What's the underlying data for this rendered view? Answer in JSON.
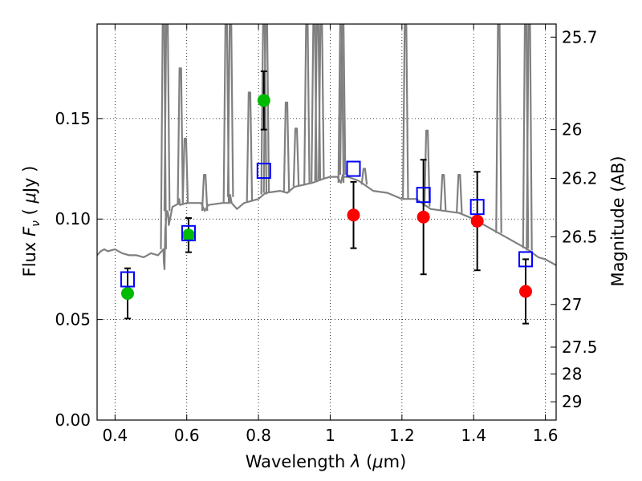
{
  "chart_data": {
    "type": "scatter",
    "xlabel": "Wavelength  λ (μm)",
    "ylabel": "Flux  Fν  ( μJy )",
    "y2label": "Magnitude (AB)",
    "xlim": [
      0.35,
      1.63
    ],
    "ylim": [
      0.0,
      0.197
    ],
    "grid": true,
    "x_ticks": [
      0.4,
      0.6,
      0.8,
      1.0,
      1.2,
      1.4,
      1.6
    ],
    "x_tick_labels": [
      "0.4",
      "0.6",
      "0.8",
      "1",
      "1.2",
      "1.4",
      "1.6"
    ],
    "y_ticks": [
      0.0,
      0.05,
      0.1,
      0.15
    ],
    "y_tick_labels": [
      "0.00",
      "0.05",
      "0.10",
      "0.15"
    ],
    "y2_ticks": [
      {
        "label": "25.7",
        "flux": 0.1905
      },
      {
        "label": "26",
        "flux": 0.1445
      },
      {
        "label": "26.2",
        "flux": 0.1202
      },
      {
        "label": "26.5",
        "flux": 0.0912
      },
      {
        "label": "27",
        "flux": 0.0575
      },
      {
        "label": "27.5",
        "flux": 0.0363
      },
      {
        "label": "28",
        "flux": 0.0229
      },
      {
        "label": "29",
        "flux": 0.0091
      }
    ],
    "colors": {
      "model": "#808080",
      "green": "#00bb00",
      "red": "#ff0000",
      "model_box": "#0000ff",
      "errorbar": "#000000"
    },
    "series": [
      {
        "kind": "line",
        "x": [
          0.35,
          0.36,
          0.37,
          0.38,
          0.4,
          0.42,
          0.44,
          0.46,
          0.48,
          0.5,
          0.52,
          0.535,
          0.536,
          0.538,
          0.54,
          0.545,
          0.548,
          0.55,
          0.56,
          0.58,
          0.579,
          0.581,
          0.6,
          0.63,
          0.64,
          0.65,
          0.66,
          0.7,
          0.72,
          0.721,
          0.725,
          0.74,
          0.76,
          0.8,
          0.82,
          0.86,
          0.88,
          0.9,
          0.95,
          0.98,
          1.0,
          1.02,
          1.03,
          1.035,
          1.04,
          1.05,
          1.08,
          1.12,
          1.16,
          1.2,
          1.24,
          1.28,
          1.32,
          1.36,
          1.4,
          1.44,
          1.48,
          1.5,
          1.52,
          1.55,
          1.58,
          1.6,
          1.63
        ],
        "y": [
          0.082,
          0.084,
          0.085,
          0.084,
          0.085,
          0.083,
          0.082,
          0.082,
          0.081,
          0.083,
          0.082,
          0.085,
          0.079,
          0.075,
          0.095,
          0.104,
          0.103,
          0.097,
          0.106,
          0.108,
          0.11,
          0.107,
          0.108,
          0.108,
          0.108,
          0.104,
          0.107,
          0.108,
          0.108,
          0.112,
          0.108,
          0.105,
          0.108,
          0.11,
          0.113,
          0.114,
          0.113,
          0.116,
          0.118,
          0.12,
          0.121,
          0.121,
          0.118,
          0.122,
          0.121,
          0.121,
          0.119,
          0.114,
          0.113,
          0.11,
          0.11,
          0.105,
          0.104,
          0.103,
          0.1,
          0.096,
          0.092,
          0.09,
          0.088,
          0.085,
          0.081,
          0.08,
          0.077
        ]
      },
      {
        "kind": "emission_lines",
        "x": [
          0.535,
          0.545,
          0.582,
          0.596,
          0.65,
          0.71,
          0.722,
          0.775,
          0.815,
          0.822,
          0.878,
          0.905,
          0.935,
          0.955,
          0.965,
          0.975,
          1.03,
          1.035,
          1.095,
          1.21,
          1.27,
          1.315,
          1.36,
          1.47,
          1.545,
          1.555
        ],
        "y": [
          0.197,
          0.197,
          0.175,
          0.14,
          0.122,
          0.197,
          0.197,
          0.163,
          0.197,
          0.197,
          0.158,
          0.145,
          0.197,
          0.197,
          0.197,
          0.197,
          0.197,
          0.197,
          0.125,
          0.197,
          0.144,
          0.122,
          0.122,
          0.197,
          0.197,
          0.197
        ]
      },
      {
        "kind": "model_photometry",
        "x": [
          0.435,
          0.605,
          0.815,
          1.065,
          1.26,
          1.41,
          1.545
        ],
        "y": [
          0.07,
          0.093,
          0.124,
          0.125,
          0.112,
          0.106,
          0.08
        ]
      },
      {
        "kind": "observed",
        "color": "green",
        "x": [
          0.435,
          0.605,
          0.815
        ],
        "y": [
          0.063,
          0.092,
          0.159
        ],
        "yerr": [
          0.0125,
          0.0085,
          0.0145
        ]
      },
      {
        "kind": "observed",
        "color": "red",
        "x": [
          1.065,
          1.26,
          1.41,
          1.545
        ],
        "y": [
          0.102,
          0.101,
          0.099,
          0.064
        ],
        "yerr": [
          0.0165,
          0.0285,
          0.0245,
          0.016
        ]
      }
    ]
  }
}
